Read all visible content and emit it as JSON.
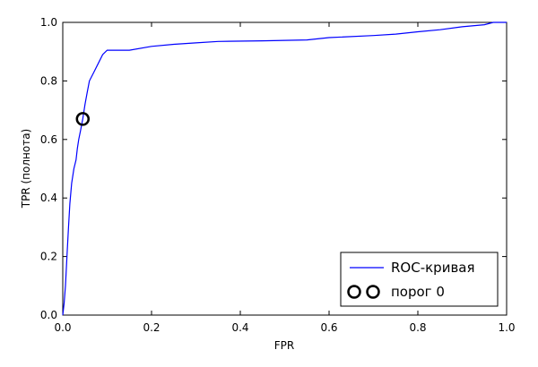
{
  "chart_data": {
    "type": "line",
    "title": "",
    "xlabel": "FPR",
    "ylabel": "TPR (полнота)",
    "xlim": [
      0.0,
      1.0
    ],
    "ylim": [
      0.0,
      1.0
    ],
    "xticks": [
      "0.0",
      "0.2",
      "0.4",
      "0.6",
      "0.8",
      "1.0"
    ],
    "yticks": [
      "0.0",
      "0.2",
      "0.4",
      "0.6",
      "0.8",
      "1.0"
    ],
    "grid": false,
    "legend_position": "lower-right",
    "series": [
      {
        "name": "ROC-кривая",
        "color": "#0000ff",
        "points": [
          [
            0.0,
            0.0
          ],
          [
            0.003,
            0.04
          ],
          [
            0.006,
            0.1
          ],
          [
            0.008,
            0.16
          ],
          [
            0.01,
            0.22
          ],
          [
            0.013,
            0.3
          ],
          [
            0.016,
            0.38
          ],
          [
            0.02,
            0.45
          ],
          [
            0.025,
            0.5
          ],
          [
            0.03,
            0.53
          ],
          [
            0.033,
            0.57
          ],
          [
            0.036,
            0.6
          ],
          [
            0.04,
            0.63
          ],
          [
            0.045,
            0.67
          ],
          [
            0.05,
            0.72
          ],
          [
            0.055,
            0.76
          ],
          [
            0.06,
            0.8
          ],
          [
            0.07,
            0.83
          ],
          [
            0.08,
            0.86
          ],
          [
            0.09,
            0.89
          ],
          [
            0.1,
            0.905
          ],
          [
            0.15,
            0.905
          ],
          [
            0.2,
            0.918
          ],
          [
            0.25,
            0.925
          ],
          [
            0.3,
            0.93
          ],
          [
            0.35,
            0.935
          ],
          [
            0.45,
            0.937
          ],
          [
            0.55,
            0.94
          ],
          [
            0.6,
            0.948
          ],
          [
            0.7,
            0.955
          ],
          [
            0.75,
            0.96
          ],
          [
            0.8,
            0.968
          ],
          [
            0.85,
            0.975
          ],
          [
            0.9,
            0.985
          ],
          [
            0.95,
            0.992
          ],
          [
            0.97,
            1.0
          ],
          [
            1.0,
            1.0
          ]
        ]
      },
      {
        "name": "порог 0",
        "color": "#000000",
        "marker": "o",
        "fill": "none",
        "points": [
          [
            0.045,
            0.67
          ]
        ]
      }
    ]
  }
}
